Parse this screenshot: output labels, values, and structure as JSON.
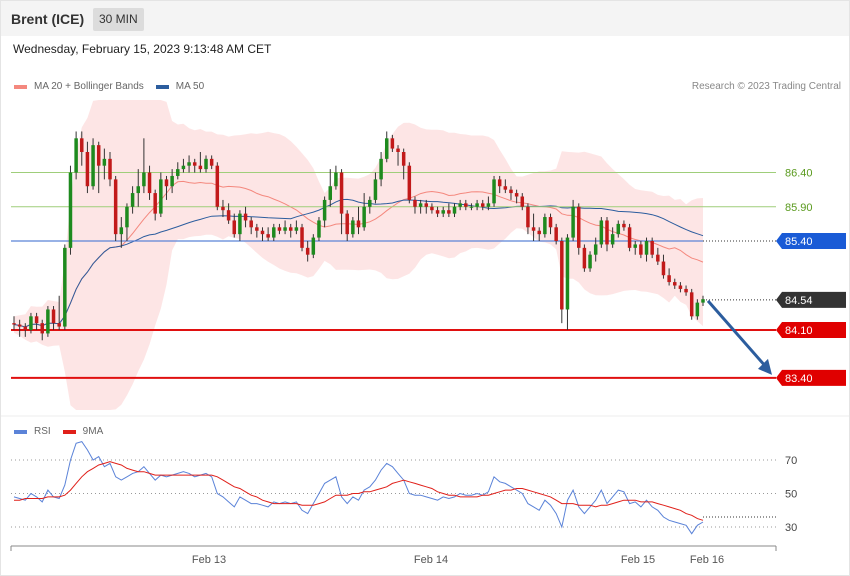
{
  "header": {
    "instrument": "Brent (ICE)",
    "timeframe": "30 MIN"
  },
  "datetime": "Wednesday, February 15, 2023 9:13:48 AM CET",
  "legend": {
    "items": [
      {
        "label": "MA 20 + Bollinger Bands",
        "color": "#f4887e"
      },
      {
        "label": "MA 50",
        "color": "#2c5d9e"
      }
    ],
    "credit": "Research © 2023 Trading Central"
  },
  "rsi_legend": {
    "items": [
      {
        "label": "RSI",
        "color": "#5b83d8"
      },
      {
        "label": "9MA",
        "color": "#e0201a"
      }
    ]
  },
  "colors": {
    "up": "#1e8a1e",
    "down": "#c21a1a",
    "band": "#fde0e0",
    "arrow": "#2c5d9e"
  },
  "chart_data": [
    {
      "type": "candlestick",
      "ylim": [
        83.1,
        87.6
      ],
      "x_ticks": [
        "Feb 13",
        "Feb 14",
        "Feb 15",
        "Feb 16"
      ],
      "levels": [
        {
          "value": 86.4,
          "label": "86.40",
          "style": "resistance-green"
        },
        {
          "value": 85.9,
          "label": "85.90",
          "style": "resistance-green"
        },
        {
          "value": 85.4,
          "label": "85.40",
          "style": "pivot-blue"
        },
        {
          "value": 84.54,
          "label": "84.54",
          "style": "last-price"
        },
        {
          "value": 84.1,
          "label": "84.10",
          "style": "support-red"
        },
        {
          "value": 83.4,
          "label": "83.40",
          "style": "support-red"
        }
      ],
      "projection": {
        "from": 84.54,
        "to": 83.4
      },
      "candles": [
        [
          84.2,
          84.18,
          84.3,
          84.1
        ],
        [
          84.18,
          84.15,
          84.25,
          84.0
        ],
        [
          84.15,
          84.1,
          84.2,
          84.0
        ],
        [
          84.1,
          84.3,
          84.35,
          84.05
        ],
        [
          84.3,
          84.2,
          84.35,
          84.1
        ],
        [
          84.2,
          84.05,
          84.25,
          83.95
        ],
        [
          84.05,
          84.4,
          84.45,
          84.0
        ],
        [
          84.4,
          84.2,
          84.45,
          84.1
        ],
        [
          84.2,
          84.15,
          84.6,
          84.1
        ],
        [
          84.15,
          85.3,
          85.35,
          84.1
        ],
        [
          85.3,
          86.4,
          86.5,
          85.2
        ],
        [
          86.4,
          86.9,
          87.0,
          86.3
        ],
        [
          86.9,
          86.7,
          87.0,
          86.5
        ],
        [
          86.7,
          86.2,
          86.85,
          86.1
        ],
        [
          86.2,
          86.8,
          86.9,
          86.15
        ],
        [
          86.8,
          86.5,
          86.85,
          86.1
        ],
        [
          86.5,
          86.6,
          86.75,
          86.3
        ],
        [
          86.6,
          86.3,
          86.7,
          86.2
        ],
        [
          86.3,
          85.5,
          86.35,
          85.4
        ],
        [
          85.5,
          85.6,
          85.75,
          85.3
        ],
        [
          85.6,
          85.9,
          85.95,
          85.4
        ],
        [
          85.9,
          86.1,
          86.2,
          85.8
        ],
        [
          86.1,
          86.2,
          86.45,
          85.9
        ],
        [
          86.2,
          86.4,
          86.9,
          86.1
        ],
        [
          86.4,
          86.1,
          86.5,
          86.0
        ],
        [
          86.1,
          85.8,
          86.15,
          85.7
        ],
        [
          85.8,
          86.3,
          86.4,
          85.75
        ],
        [
          86.3,
          86.2,
          86.35,
          86.0
        ],
        [
          86.2,
          86.35,
          86.45,
          86.1
        ],
        [
          86.35,
          86.45,
          86.55,
          86.3
        ],
        [
          86.45,
          86.5,
          86.6,
          86.4
        ],
        [
          86.5,
          86.55,
          86.65,
          86.4
        ],
        [
          86.55,
          86.5,
          86.6,
          86.4
        ],
        [
          86.5,
          86.45,
          86.7,
          86.4
        ],
        [
          86.45,
          86.6,
          86.65,
          86.4
        ],
        [
          86.6,
          86.5,
          86.65,
          86.45
        ],
        [
          86.5,
          85.9,
          86.55,
          85.85
        ],
        [
          85.9,
          85.85,
          86.0,
          85.75
        ],
        [
          85.85,
          85.7,
          85.95,
          85.65
        ],
        [
          85.7,
          85.5,
          85.8,
          85.45
        ],
        [
          85.5,
          85.8,
          85.85,
          85.4
        ],
        [
          85.8,
          85.7,
          85.9,
          85.6
        ],
        [
          85.7,
          85.6,
          85.75,
          85.5
        ],
        [
          85.6,
          85.55,
          85.65,
          85.45
        ],
        [
          85.55,
          85.5,
          85.6,
          85.4
        ],
        [
          85.5,
          85.45,
          85.6,
          85.4
        ],
        [
          85.45,
          85.6,
          85.65,
          85.4
        ],
        [
          85.6,
          85.55,
          85.65,
          85.5
        ],
        [
          85.55,
          85.6,
          85.7,
          85.5
        ],
        [
          85.6,
          85.55,
          85.65,
          85.45
        ],
        [
          85.55,
          85.6,
          85.7,
          85.5
        ],
        [
          85.6,
          85.3,
          85.65,
          85.25
        ],
        [
          85.3,
          85.2,
          85.4,
          85.1
        ],
        [
          85.2,
          85.45,
          85.5,
          85.15
        ],
        [
          85.45,
          85.7,
          85.75,
          85.4
        ],
        [
          85.7,
          86.0,
          86.05,
          85.6
        ],
        [
          86.0,
          86.2,
          86.45,
          85.9
        ],
        [
          86.2,
          86.4,
          86.5,
          86.15
        ],
        [
          86.4,
          85.8,
          86.45,
          85.5
        ],
        [
          85.8,
          85.5,
          85.85,
          85.4
        ],
        [
          85.5,
          85.7,
          85.75,
          85.45
        ],
        [
          85.7,
          85.6,
          85.9,
          85.5
        ],
        [
          85.6,
          85.9,
          86.1,
          85.55
        ],
        [
          85.9,
          86.0,
          86.05,
          85.8
        ],
        [
          86.0,
          86.3,
          86.4,
          85.95
        ],
        [
          86.3,
          86.6,
          86.7,
          86.2
        ],
        [
          86.6,
          86.9,
          87.0,
          86.55
        ],
        [
          86.9,
          86.75,
          86.95,
          86.7
        ],
        [
          86.75,
          86.7,
          86.8,
          86.5
        ],
        [
          86.7,
          86.5,
          86.75,
          86.3
        ],
        [
          86.5,
          86.0,
          86.55,
          85.95
        ],
        [
          86.0,
          85.9,
          86.05,
          85.8
        ],
        [
          85.9,
          85.95,
          86.0,
          85.8
        ],
        [
          85.95,
          85.9,
          86.0,
          85.8
        ],
        [
          85.9,
          85.85,
          85.95,
          85.8
        ],
        [
          85.85,
          85.8,
          85.9,
          85.75
        ],
        [
          85.8,
          85.85,
          85.9,
          85.75
        ],
        [
          85.85,
          85.8,
          85.95,
          85.75
        ],
        [
          85.8,
          85.9,
          85.95,
          85.75
        ],
        [
          85.9,
          85.95,
          86.0,
          85.85
        ],
        [
          85.95,
          85.9,
          86.0,
          85.85
        ],
        [
          85.9,
          85.9,
          85.95,
          85.85
        ],
        [
          85.9,
          85.95,
          86.0,
          85.85
        ],
        [
          85.95,
          85.9,
          86.0,
          85.85
        ],
        [
          85.9,
          85.95,
          86.05,
          85.85
        ],
        [
          85.95,
          86.3,
          86.35,
          85.9
        ],
        [
          86.3,
          86.2,
          86.35,
          86.1
        ],
        [
          86.2,
          86.15,
          86.3,
          86.1
        ],
        [
          86.15,
          86.1,
          86.2,
          86.0
        ],
        [
          86.1,
          86.05,
          86.15,
          85.95
        ],
        [
          86.05,
          85.9,
          86.1,
          85.85
        ],
        [
          85.9,
          85.6,
          85.95,
          85.5
        ],
        [
          85.6,
          85.55,
          85.8,
          85.4
        ],
        [
          85.55,
          85.5,
          85.6,
          85.4
        ],
        [
          85.5,
          85.75,
          85.8,
          85.45
        ],
        [
          85.75,
          85.6,
          85.8,
          85.5
        ],
        [
          85.6,
          85.4,
          85.65,
          85.35
        ],
        [
          85.4,
          84.4,
          85.45,
          84.2
        ],
        [
          84.4,
          85.45,
          85.5,
          84.1
        ],
        [
          85.45,
          85.9,
          86.0,
          85.4
        ],
        [
          85.9,
          85.3,
          85.95,
          85.2
        ],
        [
          85.3,
          85.0,
          85.35,
          84.95
        ],
        [
          85.0,
          85.2,
          85.25,
          84.95
        ],
        [
          85.2,
          85.35,
          85.45,
          85.1
        ],
        [
          85.35,
          85.7,
          85.75,
          85.3
        ],
        [
          85.7,
          85.35,
          85.75,
          85.25
        ],
        [
          85.35,
          85.5,
          85.6,
          85.3
        ],
        [
          85.5,
          85.65,
          85.7,
          85.45
        ],
        [
          85.65,
          85.6,
          85.7,
          85.55
        ],
        [
          85.6,
          85.3,
          85.65,
          85.25
        ],
        [
          85.3,
          85.35,
          85.4,
          85.2
        ],
        [
          85.35,
          85.2,
          85.4,
          85.15
        ],
        [
          85.2,
          85.4,
          85.45,
          85.1
        ],
        [
          85.4,
          85.2,
          85.45,
          85.15
        ],
        [
          85.2,
          85.1,
          85.3,
          85.05
        ],
        [
          85.1,
          84.9,
          85.2,
          84.85
        ],
        [
          84.9,
          84.8,
          85.0,
          84.75
        ],
        [
          84.8,
          84.75,
          84.85,
          84.7
        ],
        [
          84.75,
          84.7,
          84.8,
          84.65
        ],
        [
          84.7,
          84.65,
          84.75,
          84.6
        ],
        [
          84.65,
          84.3,
          84.7,
          84.25
        ],
        [
          84.3,
          84.5,
          84.55,
          84.25
        ],
        [
          84.5,
          84.55,
          84.6,
          84.45
        ]
      ]
    },
    {
      "type": "line",
      "name": "RSI panel",
      "ylim": [
        15,
        80
      ],
      "y_ticks": [
        70,
        50,
        30
      ],
      "rsi": [
        48,
        47,
        46,
        50,
        48,
        45,
        52,
        48,
        47,
        55,
        70,
        80,
        81,
        76,
        70,
        72,
        66,
        68,
        60,
        58,
        60,
        62,
        63,
        66,
        62,
        58,
        61,
        60,
        61,
        62,
        63,
        62,
        60,
        61,
        62,
        60,
        50,
        48,
        45,
        42,
        48,
        46,
        44,
        44,
        43,
        42,
        45,
        44,
        45,
        44,
        45,
        40,
        38,
        44,
        50,
        56,
        58,
        60,
        48,
        44,
        48,
        46,
        52,
        54,
        58,
        64,
        68,
        66,
        62,
        58,
        50,
        49,
        49,
        48,
        47,
        46,
        48,
        47,
        48,
        50,
        49,
        49,
        50,
        49,
        51,
        60,
        57,
        56,
        54,
        52,
        50,
        44,
        42,
        40,
        46,
        43,
        38,
        30,
        46,
        52,
        42,
        38,
        42,
        46,
        52,
        44,
        48,
        52,
        51,
        44,
        45,
        42,
        46,
        42,
        40,
        36,
        34,
        33,
        32,
        31,
        26,
        31,
        33
      ],
      "ma": [
        46,
        46,
        47,
        47,
        47,
        47,
        48,
        48,
        48,
        49,
        52,
        56,
        60,
        63,
        65,
        67,
        68,
        69,
        68,
        67,
        65,
        64,
        63,
        63,
        62,
        61,
        61,
        61,
        61,
        61,
        61,
        61,
        61,
        61,
        61,
        61,
        60,
        58,
        56,
        54,
        53,
        51,
        49,
        48,
        46,
        45,
        44,
        44,
        44,
        44,
        44,
        43,
        43,
        43,
        44,
        45,
        47,
        49,
        49,
        49,
        50,
        50,
        51,
        51,
        52,
        53,
        54,
        56,
        57,
        58,
        57,
        56,
        55,
        54,
        53,
        51,
        50,
        49,
        49,
        48,
        48,
        48,
        48,
        49,
        49,
        50,
        51,
        52,
        52,
        53,
        53,
        52,
        51,
        50,
        49,
        48,
        46,
        44,
        44,
        44,
        43,
        43,
        43,
        42,
        43,
        43,
        44,
        45,
        46,
        46,
        46,
        45,
        45,
        45,
        44,
        43,
        42,
        41,
        40,
        38,
        37,
        35,
        34
      ]
    }
  ]
}
